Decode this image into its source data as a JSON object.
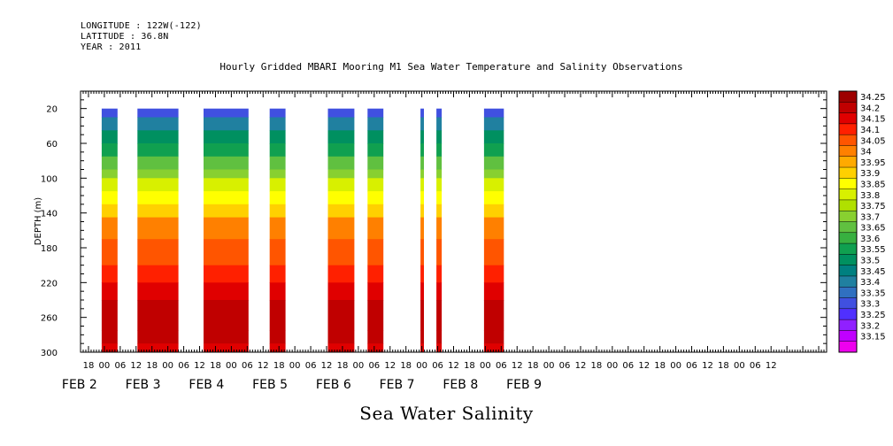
{
  "header": {
    "longitude": "LONGITUDE : 122W(-122)",
    "latitude": "LATITUDE : 36.8N",
    "year": "YEAR : 2011"
  },
  "chart_data": {
    "type": "heatmap",
    "title": "Hourly Gridded MBARI Mooring M1 Sea Water Temperature and Salinity Observations",
    "xlabel": "Sea Water Salinity",
    "ylabel": "DEPTH (m)",
    "ylim": [
      300,
      0
    ],
    "yticks": [
      "20",
      "60",
      "100",
      "140",
      "180",
      "220",
      "260",
      "300"
    ],
    "xlim_hours": [
      -9,
      273
    ],
    "hour_ticks": [
      {
        "h": -6,
        "label": "18"
      },
      {
        "h": 0,
        "label": "00"
      },
      {
        "h": 6,
        "label": "06"
      },
      {
        "h": 12,
        "label": "12"
      },
      {
        "h": 18,
        "label": "18"
      },
      {
        "h": 24,
        "label": "00"
      },
      {
        "h": 30,
        "label": "06"
      },
      {
        "h": 36,
        "label": "12"
      },
      {
        "h": 42,
        "label": "18"
      },
      {
        "h": 48,
        "label": "00"
      },
      {
        "h": 54,
        "label": "06"
      },
      {
        "h": 60,
        "label": "12"
      },
      {
        "h": 66,
        "label": "18"
      },
      {
        "h": 72,
        "label": "00"
      },
      {
        "h": 78,
        "label": "06"
      },
      {
        "h": 84,
        "label": "12"
      },
      {
        "h": 90,
        "label": "18"
      },
      {
        "h": 96,
        "label": "00"
      },
      {
        "h": 102,
        "label": "06"
      },
      {
        "h": 108,
        "label": "12"
      },
      {
        "h": 114,
        "label": "18"
      },
      {
        "h": 120,
        "label": "00"
      },
      {
        "h": 126,
        "label": "06"
      },
      {
        "h": 132,
        "label": "12"
      },
      {
        "h": 138,
        "label": "18"
      },
      {
        "h": 144,
        "label": "00"
      },
      {
        "h": 150,
        "label": "06"
      },
      {
        "h": 156,
        "label": "12"
      },
      {
        "h": 162,
        "label": "18"
      },
      {
        "h": 168,
        "label": "00"
      },
      {
        "h": 174,
        "label": "06"
      },
      {
        "h": 180,
        "label": "12"
      },
      {
        "h": 186,
        "label": "18"
      },
      {
        "h": 192,
        "label": "00"
      },
      {
        "h": 198,
        "label": "06"
      },
      {
        "h": 204,
        "label": "12"
      },
      {
        "h": 210,
        "label": "18"
      },
      {
        "h": 216,
        "label": "00"
      },
      {
        "h": 222,
        "label": "06"
      },
      {
        "h": 228,
        "label": "12"
      },
      {
        "h": 234,
        "label": "18"
      },
      {
        "h": 240,
        "label": "00"
      },
      {
        "h": 246,
        "label": "06"
      },
      {
        "h": 252,
        "label": "12"
      }
    ],
    "day_labels": [
      {
        "h": 0,
        "label": "FEB  2"
      },
      {
        "h": 24,
        "label": "FEB  3"
      },
      {
        "h": 48,
        "label": "FEB  4"
      },
      {
        "h": 72,
        "label": "FEB  5"
      },
      {
        "h": 96,
        "label": "FEB  6"
      },
      {
        "h": 120,
        "label": "FEB  7"
      },
      {
        "h": 144,
        "label": "FEB  8"
      },
      {
        "h": 168,
        "label": "FEB  9"
      }
    ],
    "data_segments_hours": [
      [
        -1,
        5
      ],
      [
        12.5,
        28
      ],
      [
        37.5,
        54.5
      ],
      [
        62.5,
        68.5
      ],
      [
        84.5,
        94.5
      ],
      [
        99.5,
        105.5
      ],
      [
        119.5,
        120.8
      ],
      [
        125.5,
        127.5
      ],
      [
        143.5,
        151
      ]
    ],
    "depth_profile": [
      {
        "depth": 20,
        "salinity": 33.3
      },
      {
        "depth": 30,
        "salinity": 33.4
      },
      {
        "depth": 45,
        "salinity": 33.5
      },
      {
        "depth": 60,
        "salinity": 33.58
      },
      {
        "depth": 75,
        "salinity": 33.66
      },
      {
        "depth": 90,
        "salinity": 33.74
      },
      {
        "depth": 100,
        "salinity": 33.8
      },
      {
        "depth": 115,
        "salinity": 33.88
      },
      {
        "depth": 130,
        "salinity": 33.94
      },
      {
        "depth": 145,
        "salinity": 34.0
      },
      {
        "depth": 170,
        "salinity": 34.05
      },
      {
        "depth": 200,
        "salinity": 34.1
      },
      {
        "depth": 220,
        "salinity": 34.15
      },
      {
        "depth": 240,
        "salinity": 34.2
      },
      {
        "depth": 275,
        "salinity": 34.22
      },
      {
        "depth": 290,
        "salinity": 34.15
      },
      {
        "depth": 300,
        "salinity": 34.12
      }
    ],
    "colorbar": {
      "levels": [
        "34.25",
        "34.2",
        "34.15",
        "34.1",
        "34.05",
        "34",
        "33.95",
        "33.9",
        "33.85",
        "33.8",
        "33.75",
        "33.7",
        "33.65",
        "33.6",
        "33.55",
        "33.5",
        "33.45",
        "33.4",
        "33.35",
        "33.3",
        "33.25",
        "33.2",
        "33.15"
      ],
      "colors": [
        "#9e0000",
        "#c00000",
        "#e00000",
        "#ff2000",
        "#ff5500",
        "#ff8000",
        "#ffaa00",
        "#ffd000",
        "#ffff00",
        "#d8f000",
        "#b0e000",
        "#88d030",
        "#60c040",
        "#38b040",
        "#10a050",
        "#009060",
        "#008080",
        "#2080a0",
        "#3070c0",
        "#4050e0",
        "#5030ff",
        "#9020ff",
        "#c000ff",
        "#ee00ee"
      ]
    }
  }
}
